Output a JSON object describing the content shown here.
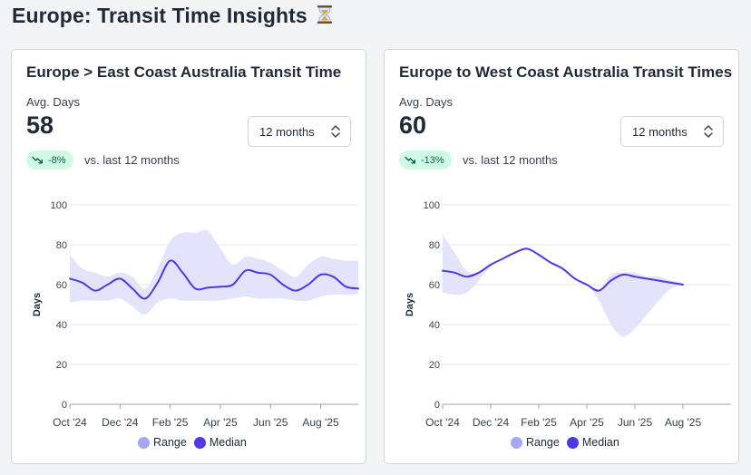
{
  "page": {
    "title": "Europe: Transit Time Insights",
    "title_icon": "hourglass-icon"
  },
  "colors": {
    "range": "#a5a6f6",
    "range_fill": "#e3e3fb",
    "median": "#4f39e5",
    "badge_bg": "#d1fae5",
    "badge_text": "#065f46"
  },
  "cards": [
    {
      "title": "Europe > East Coast Australia Transit Time",
      "avg_label": "Avg. Days",
      "avg_value": "58",
      "change": "-8%",
      "compare": "vs. last 12 months",
      "period": "12 months"
    },
    {
      "title": "Europe to West Coast Australia Transit Times",
      "avg_label": "Avg. Days",
      "avg_value": "60",
      "change": "-13%",
      "compare": "vs. last 12 months",
      "period": "12 months"
    }
  ],
  "chart_data": [
    {
      "type": "area",
      "ylabel": "Days",
      "xlabel": "",
      "ylim": [
        0,
        100
      ],
      "yticks": [
        "0",
        "20",
        "40",
        "60",
        "80",
        "100"
      ],
      "xticks": [
        "Oct '24",
        "Dec '24",
        "Feb '25",
        "Apr '25",
        "Jun '25",
        "Aug '25"
      ],
      "xlim": [
        0,
        11.5
      ],
      "grid": true,
      "legend": "bottom",
      "series": [
        {
          "name": "Median",
          "x": [
            0,
            0.5,
            1,
            1.5,
            2,
            2.5,
            3,
            3.5,
            4,
            4.5,
            5,
            5.5,
            6,
            6.5,
            7,
            7.5,
            8,
            8.5,
            9,
            9.5,
            10,
            10.5,
            11,
            11.5
          ],
          "values": [
            63,
            61,
            57,
            60,
            63,
            58,
            53,
            61,
            72,
            66,
            58,
            58.5,
            59,
            60,
            67,
            66,
            65,
            60,
            57,
            60,
            65,
            64,
            59,
            58
          ]
        },
        {
          "name": "Range",
          "x": [
            0,
            0.5,
            1,
            1.5,
            2,
            2.5,
            3,
            3.5,
            4,
            4.5,
            5,
            5.5,
            6,
            6.5,
            7,
            7.5,
            8,
            8.5,
            9,
            9.5,
            10,
            10.5,
            11,
            11.5
          ],
          "low": [
            51,
            52,
            52,
            52,
            53,
            49,
            45,
            51,
            53,
            52,
            52,
            52,
            52,
            53,
            54,
            53,
            53,
            53,
            52,
            52,
            54,
            55,
            55,
            55
          ],
          "high": [
            75,
            68,
            66,
            64,
            66,
            64,
            58,
            68,
            82,
            86,
            86,
            87,
            78,
            70,
            74,
            73,
            71,
            67,
            64,
            70,
            74,
            73,
            72,
            72
          ]
        }
      ]
    },
    {
      "type": "area",
      "ylabel": "Days",
      "xlabel": "",
      "ylim": [
        0,
        100
      ],
      "yticks": [
        "0",
        "20",
        "40",
        "60",
        "80",
        "100"
      ],
      "xticks": [
        "Oct '24",
        "Dec '24",
        "Feb '25",
        "Apr '25",
        "Jun '25",
        "Aug '25"
      ],
      "xlim": [
        0,
        12
      ],
      "grid": true,
      "legend": "bottom",
      "series": [
        {
          "name": "Median",
          "x": [
            0,
            0.5,
            1,
            1.5,
            2,
            2.5,
            3,
            3.5,
            4,
            4.5,
            5,
            5.5,
            6,
            6.5,
            7,
            7.5,
            8,
            8.5,
            9,
            9.5,
            10
          ],
          "values": [
            67,
            66,
            64,
            66,
            70,
            73,
            76,
            78,
            75,
            71,
            68,
            63,
            60,
            57,
            62,
            65,
            64,
            63,
            62,
            61,
            60
          ]
        },
        {
          "name": "Range",
          "x": [
            0,
            0.5,
            1,
            1.5,
            2,
            2.5,
            3,
            3.5,
            4,
            4.5,
            5,
            5.5,
            6,
            6.5,
            7,
            7.5,
            8,
            8.5,
            9,
            9.5,
            10
          ],
          "low": [
            56,
            55,
            56,
            62,
            69,
            73,
            76,
            78,
            75,
            71,
            67,
            63,
            60,
            52,
            40,
            34,
            38,
            45,
            52,
            58,
            60
          ],
          "high": [
            85,
            76,
            67,
            66,
            70,
            73,
            76,
            78,
            75,
            71,
            68,
            63,
            60,
            57,
            65,
            66,
            66,
            64,
            64,
            62,
            61
          ]
        }
      ]
    }
  ]
}
